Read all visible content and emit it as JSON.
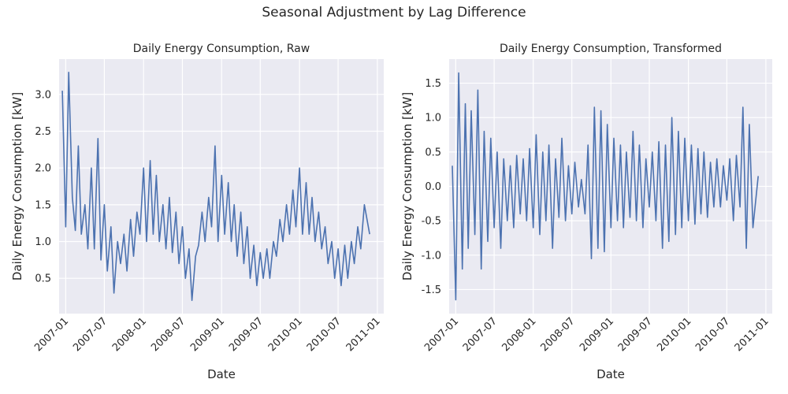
{
  "suptitle": "Seasonal Adjustment by Lag Difference",
  "chart_data": [
    {
      "type": "line",
      "title": "Daily Energy Consumption, Raw",
      "xlabel": "Date",
      "ylabel": "Daily Energy Consumption [kW]",
      "x_ticks": [
        "2007-01",
        "2007-07",
        "2008-01",
        "2008-07",
        "2009-01",
        "2009-07",
        "2010-01",
        "2010-07",
        "2011-01"
      ],
      "y_ticks": [
        0.5,
        1.0,
        1.5,
        2.0,
        2.5,
        3.0
      ],
      "xlim": [
        "2006-12-01",
        "2011-01-31"
      ],
      "ylim": [
        0.02,
        3.48
      ],
      "series_color": "#4c72b0",
      "series": [
        {
          "x": [
            "2006-12-16",
            "2007-01-01",
            "2007-01-15",
            "2007-02-01",
            "2007-02-15",
            "2007-03-01",
            "2007-03-15",
            "2007-04-01",
            "2007-04-15",
            "2007-05-01",
            "2007-05-15",
            "2007-06-01",
            "2007-06-15",
            "2007-07-01",
            "2007-07-15",
            "2007-08-01",
            "2007-08-15",
            "2007-09-01",
            "2007-09-15",
            "2007-10-01",
            "2007-10-15",
            "2007-11-01",
            "2007-11-15",
            "2007-12-01",
            "2007-12-15",
            "2008-01-01",
            "2008-01-15",
            "2008-02-01",
            "2008-02-15",
            "2008-03-01",
            "2008-03-15",
            "2008-04-01",
            "2008-04-15",
            "2008-05-01",
            "2008-05-15",
            "2008-06-01",
            "2008-06-15",
            "2008-07-01",
            "2008-07-15",
            "2008-08-01",
            "2008-08-15",
            "2008-09-01",
            "2008-09-15",
            "2008-10-01",
            "2008-10-15",
            "2008-11-01",
            "2008-11-15",
            "2008-12-01",
            "2008-12-15",
            "2009-01-01",
            "2009-01-15",
            "2009-02-01",
            "2009-02-15",
            "2009-03-01",
            "2009-03-15",
            "2009-04-01",
            "2009-04-15",
            "2009-05-01",
            "2009-05-15",
            "2009-06-01",
            "2009-06-15",
            "2009-07-01",
            "2009-07-15",
            "2009-08-01",
            "2009-08-15",
            "2009-09-01",
            "2009-09-15",
            "2009-10-01",
            "2009-10-15",
            "2009-11-01",
            "2009-11-15",
            "2009-12-01",
            "2009-12-15",
            "2010-01-01",
            "2010-01-15",
            "2010-02-01",
            "2010-02-15",
            "2010-03-01",
            "2010-03-15",
            "2010-04-01",
            "2010-04-15",
            "2010-05-01",
            "2010-05-15",
            "2010-06-01",
            "2010-06-15",
            "2010-07-01",
            "2010-07-15",
            "2010-08-01",
            "2010-08-15",
            "2010-09-01",
            "2010-09-15",
            "2010-10-01",
            "2010-10-15",
            "2010-11-01",
            "2010-11-26"
          ],
          "y": [
            3.05,
            1.2,
            3.3,
            1.6,
            1.15,
            2.3,
            1.1,
            1.5,
            0.9,
            2.0,
            0.9,
            2.4,
            0.75,
            1.5,
            0.6,
            1.2,
            0.3,
            1.0,
            0.7,
            1.1,
            0.6,
            1.3,
            0.8,
            1.4,
            1.1,
            2.0,
            1.0,
            2.1,
            1.1,
            1.9,
            1.0,
            1.5,
            0.9,
            1.6,
            0.85,
            1.4,
            0.7,
            1.2,
            0.5,
            0.9,
            0.2,
            0.8,
            0.95,
            1.4,
            1.0,
            1.6,
            1.2,
            2.3,
            1.0,
            1.9,
            1.1,
            1.8,
            1.0,
            1.5,
            0.8,
            1.4,
            0.7,
            1.2,
            0.5,
            0.95,
            0.4,
            0.85,
            0.5,
            0.9,
            0.5,
            1.0,
            0.8,
            1.3,
            1.0,
            1.5,
            1.1,
            1.7,
            1.2,
            2.0,
            1.1,
            1.8,
            1.1,
            1.6,
            1.0,
            1.4,
            0.9,
            1.2,
            0.7,
            1.0,
            0.5,
            0.9,
            0.4,
            0.95,
            0.5,
            1.0,
            0.7,
            1.2,
            0.9,
            1.5,
            1.1
          ]
        }
      ]
    },
    {
      "type": "line",
      "title": "Daily Energy Consumption, Transformed",
      "xlabel": "Date",
      "ylabel": "Daily Energy Consumption [kW]",
      "x_ticks": [
        "2007-01",
        "2007-07",
        "2008-01",
        "2008-07",
        "2009-01",
        "2009-07",
        "2010-01",
        "2010-07",
        "2011-01"
      ],
      "y_ticks": [
        -1.5,
        -1.0,
        -0.5,
        0.0,
        0.5,
        1.0,
        1.5
      ],
      "xlim": [
        "2006-12-01",
        "2011-01-31"
      ],
      "ylim": [
        -1.85,
        1.85
      ],
      "series_color": "#4c72b0",
      "series": [
        {
          "x": [
            "2006-12-16",
            "2007-01-01",
            "2007-01-15",
            "2007-02-01",
            "2007-02-15",
            "2007-03-01",
            "2007-03-15",
            "2007-04-01",
            "2007-04-15",
            "2007-05-01",
            "2007-05-15",
            "2007-06-01",
            "2007-06-15",
            "2007-07-01",
            "2007-07-15",
            "2007-08-01",
            "2007-08-15",
            "2007-09-01",
            "2007-09-15",
            "2007-10-01",
            "2007-10-15",
            "2007-11-01",
            "2007-11-15",
            "2007-12-01",
            "2007-12-15",
            "2008-01-01",
            "2008-01-15",
            "2008-02-01",
            "2008-02-15",
            "2008-03-01",
            "2008-03-15",
            "2008-04-01",
            "2008-04-15",
            "2008-05-01",
            "2008-05-15",
            "2008-06-01",
            "2008-06-15",
            "2008-07-01",
            "2008-07-15",
            "2008-08-01",
            "2008-08-15",
            "2008-09-01",
            "2008-09-15",
            "2008-10-01",
            "2008-10-15",
            "2008-11-01",
            "2008-11-15",
            "2008-12-01",
            "2008-12-15",
            "2009-01-01",
            "2009-01-15",
            "2009-02-01",
            "2009-02-15",
            "2009-03-01",
            "2009-03-15",
            "2009-04-01",
            "2009-04-15",
            "2009-05-01",
            "2009-05-15",
            "2009-06-01",
            "2009-06-15",
            "2009-07-01",
            "2009-07-15",
            "2009-08-01",
            "2009-08-15",
            "2009-09-01",
            "2009-09-15",
            "2009-10-01",
            "2009-10-15",
            "2009-11-01",
            "2009-11-15",
            "2009-12-01",
            "2009-12-15",
            "2010-01-01",
            "2010-01-15",
            "2010-02-01",
            "2010-02-15",
            "2010-03-01",
            "2010-03-15",
            "2010-04-01",
            "2010-04-15",
            "2010-05-01",
            "2010-05-15",
            "2010-06-01",
            "2010-06-15",
            "2010-07-01",
            "2010-07-15",
            "2010-08-01",
            "2010-08-15",
            "2010-09-01",
            "2010-09-15",
            "2010-10-01",
            "2010-10-15",
            "2010-11-01",
            "2010-11-26"
          ],
          "y": [
            0.3,
            -1.65,
            1.65,
            -1.2,
            1.2,
            -0.9,
            1.1,
            -0.7,
            1.4,
            -1.2,
            0.8,
            -0.8,
            0.7,
            -0.6,
            0.5,
            -0.9,
            0.4,
            -0.5,
            0.3,
            -0.6,
            0.45,
            -0.4,
            0.4,
            -0.5,
            0.55,
            -0.6,
            0.75,
            -0.7,
            0.5,
            -0.5,
            0.6,
            -0.9,
            0.4,
            -0.45,
            0.7,
            -0.5,
            0.3,
            -0.4,
            0.35,
            -0.3,
            0.1,
            -0.4,
            0.6,
            -1.05,
            1.15,
            -0.9,
            1.1,
            -0.95,
            0.9,
            -0.6,
            0.7,
            -0.5,
            0.6,
            -0.6,
            0.5,
            -0.45,
            0.8,
            -0.5,
            0.6,
            -0.6,
            0.4,
            -0.3,
            0.5,
            -0.5,
            0.65,
            -0.9,
            0.6,
            -0.8,
            1.0,
            -0.7,
            0.8,
            -0.6,
            0.7,
            -0.5,
            0.6,
            -0.55,
            0.55,
            -0.4,
            0.5,
            -0.45,
            0.35,
            -0.3,
            0.4,
            -0.3,
            0.3,
            -0.2,
            0.4,
            -0.5,
            0.45,
            -0.3,
            1.15,
            -0.9,
            0.9,
            -0.6,
            0.15
          ]
        }
      ]
    }
  ]
}
